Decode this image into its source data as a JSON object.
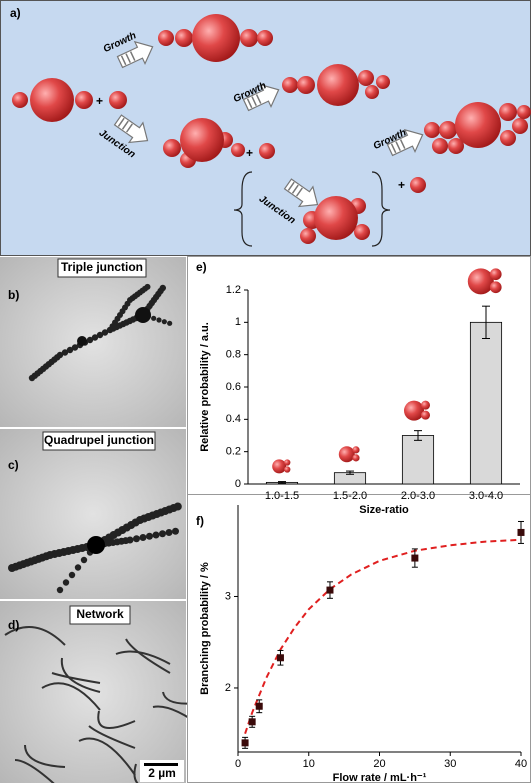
{
  "diagram": {
    "label": "a)",
    "growth": [
      "Growth",
      "Growth",
      "Growth"
    ],
    "junction": [
      "Junction",
      "Junction"
    ],
    "plus": [
      "+",
      "+",
      "+"
    ]
  },
  "tem": [
    {
      "label": "b)",
      "title": "Triple junction"
    },
    {
      "label": "c)",
      "title": "Quadrupel junction"
    },
    {
      "label": "d)",
      "title": "Network"
    }
  ],
  "scale_bar": "2 µm",
  "chart_data": [
    {
      "type": "bar",
      "label": "e)",
      "ylabel": "Relative probability / a.u.",
      "xlabel": "Size-ratio",
      "categories": [
        "1.0-1.5",
        "1.5-2.0",
        "2.0-3.0",
        "3.0-4.0"
      ],
      "values": [
        0.01,
        0.07,
        0.3,
        1.0
      ],
      "errors": [
        0.005,
        0.01,
        0.03,
        0.1
      ],
      "color": "#d9d9d9",
      "ylim": [
        0,
        1.2
      ],
      "yticks": [
        0,
        0.2,
        0.4,
        0.6,
        0.8,
        1,
        1.2
      ]
    },
    {
      "type": "scatter",
      "label": "f)",
      "ylabel": "Branching probability / %",
      "xlabel": "Flow rate / mL·h⁻¹",
      "x": [
        1,
        2,
        3,
        6,
        13,
        25,
        40
      ],
      "values": [
        1.4,
        1.63,
        1.8,
        2.33,
        3.07,
        3.42,
        3.7
      ],
      "errors": [
        0.06,
        0.06,
        0.07,
        0.08,
        0.09,
        0.1,
        0.12
      ],
      "color": "#3a0a0a",
      "fit": {
        "color": "#e02020",
        "x": [
          1,
          2,
          4,
          6,
          8,
          10,
          13,
          16,
          20,
          25,
          30,
          35,
          40
        ],
        "y": [
          1.5,
          1.73,
          2.11,
          2.42,
          2.66,
          2.86,
          3.08,
          3.24,
          3.39,
          3.5,
          3.56,
          3.6,
          3.62
        ]
      },
      "xlim": [
        0,
        40
      ],
      "xticks": [
        0,
        10,
        20,
        30,
        40
      ],
      "ylim": [
        1.3,
        4.0
      ],
      "yticks": [
        2,
        3
      ]
    }
  ]
}
